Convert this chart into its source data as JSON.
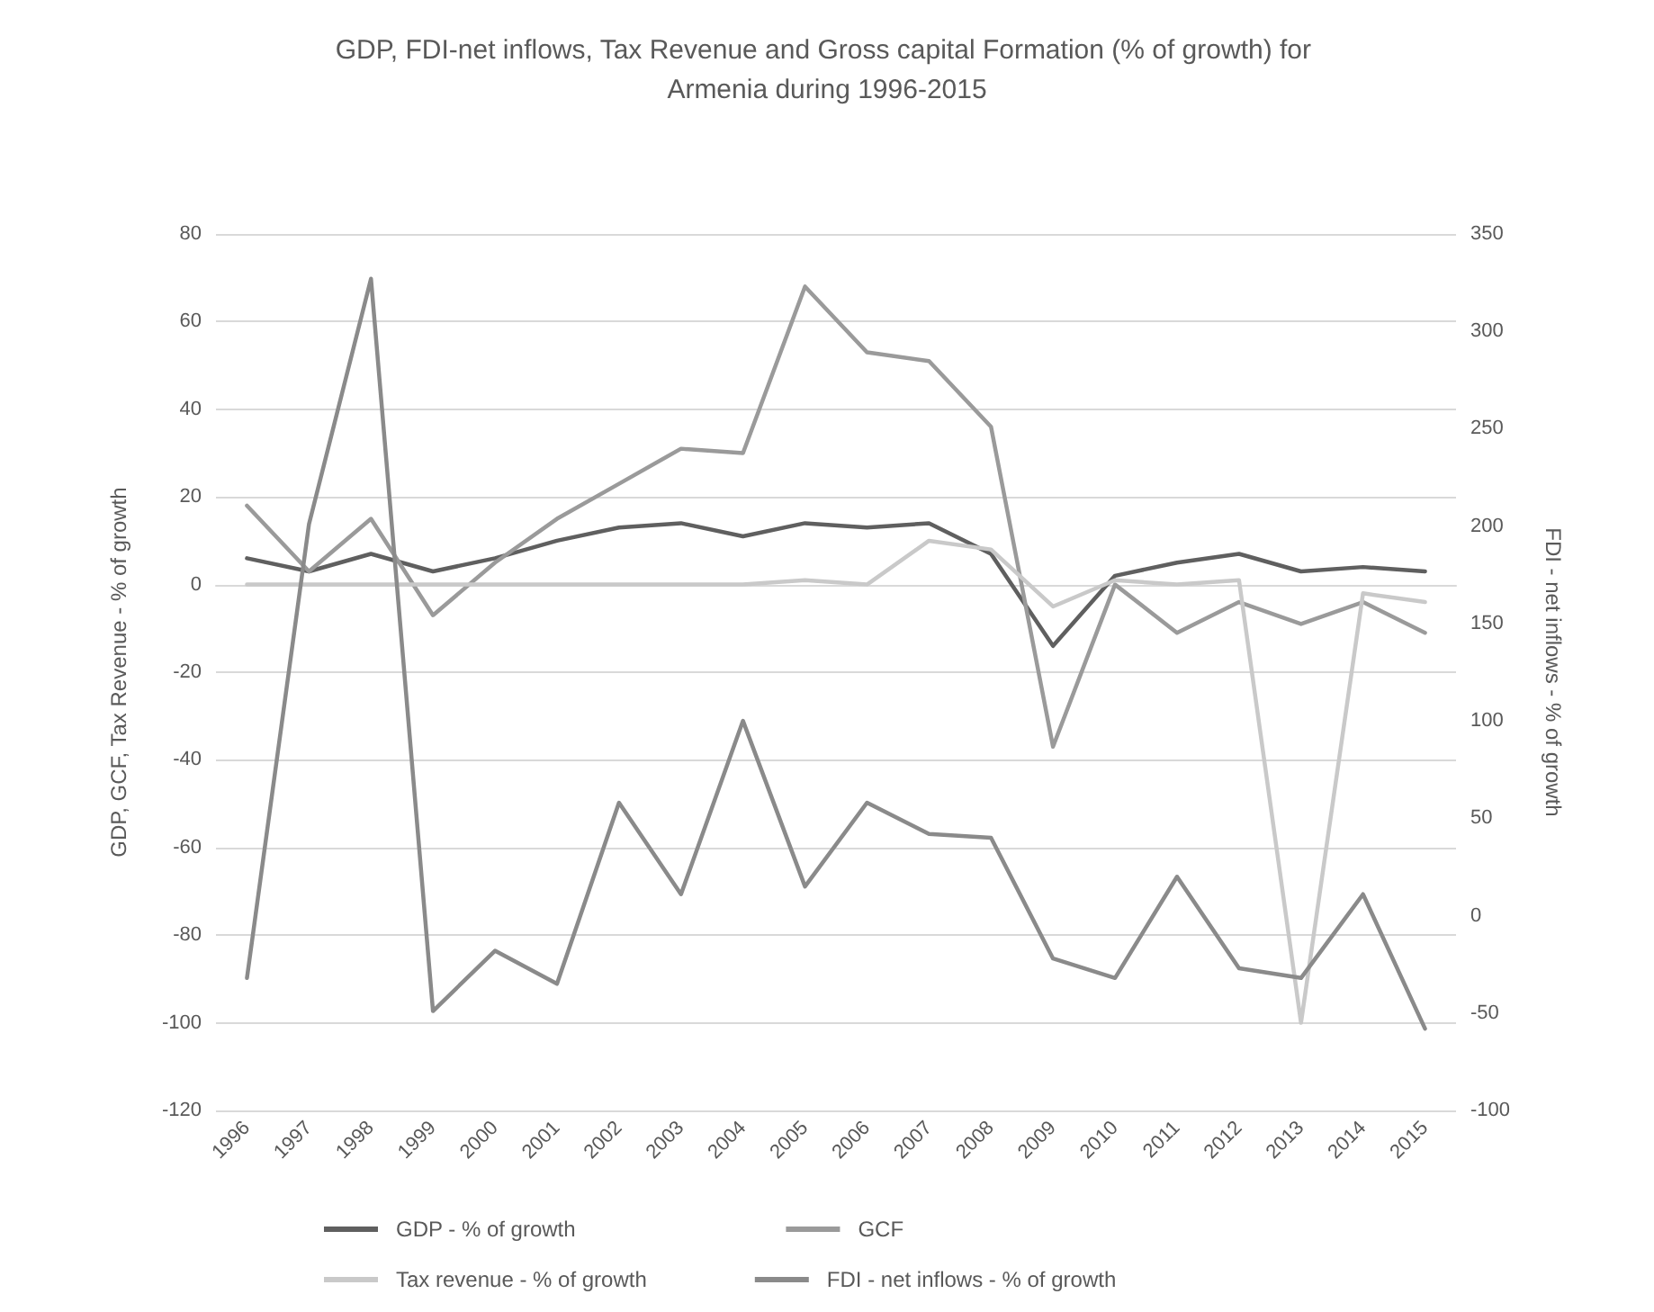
{
  "chart_data": {
    "type": "line",
    "title": "GDP, FDI-net inflows, Tax Revenue and Gross capital Formation (% of growth) for Armenia during 1996-2015",
    "ylabel": "GDP, GCF, Tax Revenue - % of growth",
    "y2label": "FDI - net inflows - % of growth",
    "categories": [
      "1996",
      "1997",
      "1998",
      "1999",
      "2000",
      "2001",
      "2002",
      "2003",
      "2004",
      "2005",
      "2006",
      "2007",
      "2008",
      "2009",
      "2010",
      "2011",
      "2012",
      "2013",
      "2014",
      "2015"
    ],
    "series": [
      {
        "name": "GDP - % of growth",
        "color": "#5f5f5f",
        "values": [
          6,
          3,
          7,
          3,
          6,
          10,
          13,
          14,
          11,
          14,
          13,
          14,
          7,
          -14,
          2,
          5,
          7,
          3,
          4,
          3
        ]
      },
      {
        "name": "GCF",
        "color": "#9a9a9a",
        "values": [
          18,
          3,
          15,
          -7,
          5,
          15,
          23,
          31,
          30,
          68,
          53,
          51,
          36,
          -37,
          0,
          -11,
          -4,
          -9,
          -4,
          -11
        ]
      },
      {
        "name": "Tax revenue - % of growth",
        "color": "#c9c9c9",
        "values": [
          0,
          0,
          0,
          0,
          0,
          0,
          0,
          0,
          0,
          1,
          0,
          10,
          8,
          -5,
          1,
          0,
          1,
          -100,
          -2,
          -4
        ]
      },
      {
        "name": "FDI - net inflows - % of growth",
        "color": "#8a8a8a",
        "axis": "y2",
        "values": [
          -32,
          201,
          327,
          -49,
          -18,
          -35,
          58,
          11,
          100,
          15,
          58,
          42,
          40,
          -22,
          -32,
          20,
          -27,
          -32,
          11,
          -58
        ]
      }
    ],
    "ylim": [
      -120,
      80
    ],
    "yticks": [
      -120,
      -100,
      -80,
      -60,
      -40,
      -20,
      0,
      20,
      40,
      60,
      80
    ],
    "y2lim": [
      -100,
      350
    ],
    "y2ticks": [
      -100,
      -50,
      0,
      50,
      100,
      150,
      200,
      250,
      300,
      350
    ],
    "grid": "y",
    "legend": "bottom",
    "marker": "none",
    "line_style": "solid"
  }
}
